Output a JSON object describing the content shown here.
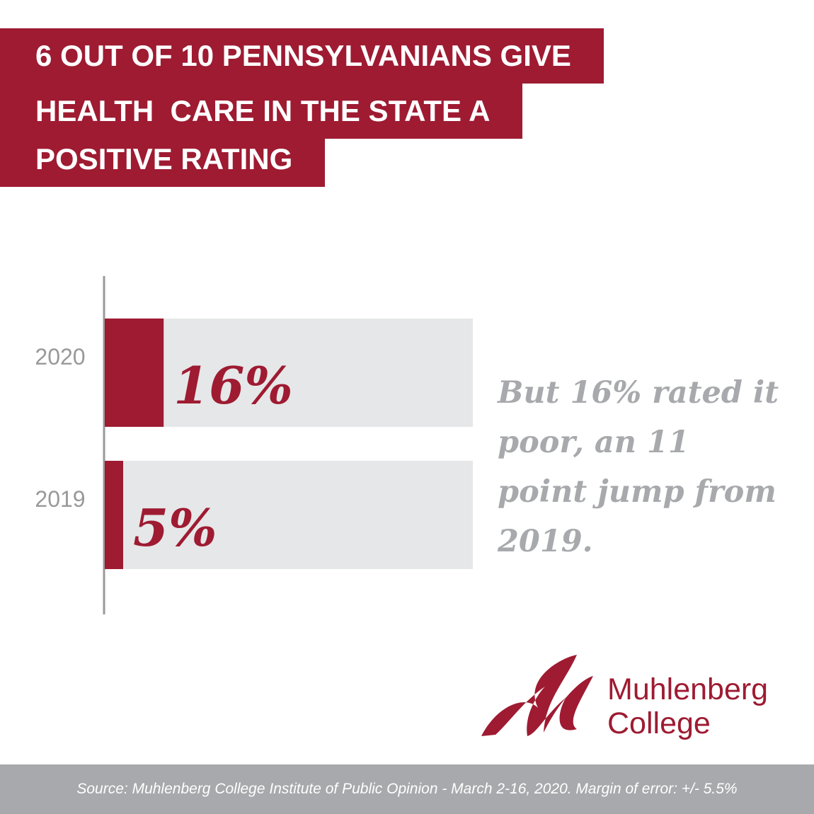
{
  "title": [
    "6 OUT OF 10 PENNSYLVANIANS GIVE",
    "HEALTH  CARE IN THE STATE A",
    "POSITIVE RATING"
  ],
  "chart_data": {
    "type": "bar",
    "orientation": "horizontal",
    "categories": [
      "2020",
      "2019"
    ],
    "values": [
      16,
      5
    ],
    "value_labels": [
      "16%",
      "5%"
    ],
    "color": "#9e1b32",
    "track_color": "#e6e7e8",
    "xlim": [
      0,
      100
    ],
    "annotation": "But 16% rated it poor, an 11 point jump from 2019."
  },
  "logo": {
    "lines": [
      "Muhlenberg",
      "College"
    ]
  },
  "source": "Source: Muhlenberg College Institute of Public Opinion - March 2-16, 2020. Margin of error: +/- 5.5%"
}
